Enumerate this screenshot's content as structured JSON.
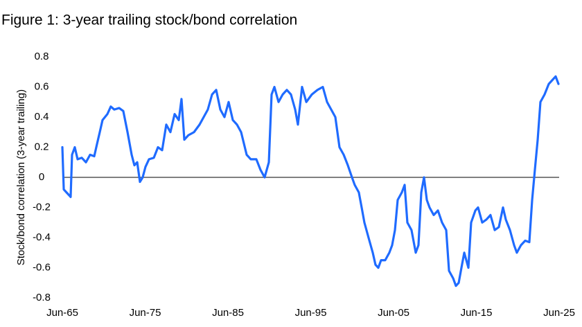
{
  "chart_data": {
    "type": "line",
    "title": "Figure 1: 3-year trailing stock/bond correlation",
    "y_label": "Stock/bond correlation (3-year trailing)",
    "color": "#1f6bff",
    "x": [
      1965.5,
      1965.67,
      1966.0,
      1966.34,
      1966.5,
      1966.67,
      1967.0,
      1967.34,
      1967.84,
      1968.35,
      1968.85,
      1969.35,
      1969.68,
      1970.02,
      1970.35,
      1970.94,
      1971.35,
      1971.77,
      1972.36,
      1972.86,
      1973.37,
      1973.87,
      1974.2,
      1974.54,
      1974.87,
      1975.2,
      1975.54,
      1975.96,
      1976.55,
      1977.05,
      1977.55,
      1978.05,
      1978.55,
      1979.06,
      1979.56,
      1979.89,
      1980.23,
      1980.73,
      1981.4,
      1982.07,
      1982.57,
      1983.07,
      1983.58,
      1984.08,
      1984.58,
      1985.08,
      1985.58,
      1986.09,
      1986.59,
      1987.09,
      1987.76,
      1988.26,
      1988.93,
      1989.43,
      1989.93,
      1990.44,
      1990.77,
      1991.11,
      1991.61,
      1992.11,
      1992.61,
      1993.11,
      1993.62,
      1993.95,
      1994.45,
      1994.96,
      1995.63,
      1996.3,
      1996.96,
      1997.47,
      1997.97,
      1998.47,
      1998.97,
      1999.48,
      1999.98,
      2000.48,
      2000.81,
      2001.31,
      2001.65,
      2001.98,
      2002.48,
      2002.99,
      2003.32,
      2003.66,
      2003.99,
      2004.49,
      2004.99,
      2005.33,
      2005.67,
      2006.0,
      2006.5,
      2006.84,
      2007.17,
      2007.67,
      2008.18,
      2008.51,
      2008.85,
      2009.18,
      2009.52,
      2009.85,
      2010.35,
      2010.86,
      2011.36,
      2011.86,
      2012.2,
      2012.7,
      2013.03,
      2013.37,
      2013.7,
      2014.04,
      2014.54,
      2014.87,
      2015.38,
      2015.71,
      2016.21,
      2016.71,
      2017.21,
      2017.72,
      2018.22,
      2018.72,
      2019.06,
      2019.56,
      2020.06,
      2020.39,
      2020.89,
      2021.4,
      2021.9,
      2022.24,
      2022.57,
      2022.91,
      2023.24,
      2023.74,
      2024.25,
      2024.75,
      2025.08,
      2025.42
    ],
    "values": [
      0.2,
      -0.08,
      -0.1,
      -0.12,
      -0.13,
      0.15,
      0.2,
      0.12,
      0.13,
      0.1,
      0.15,
      0.14,
      0.22,
      0.3,
      0.38,
      0.42,
      0.47,
      0.45,
      0.46,
      0.44,
      0.3,
      0.15,
      0.08,
      0.1,
      -0.03,
      0.0,
      0.07,
      0.12,
      0.13,
      0.2,
      0.18,
      0.35,
      0.3,
      0.42,
      0.38,
      0.52,
      0.25,
      0.28,
      0.3,
      0.35,
      0.4,
      0.45,
      0.55,
      0.58,
      0.45,
      0.4,
      0.5,
      0.38,
      0.35,
      0.3,
      0.15,
      0.12,
      0.12,
      0.05,
      0.0,
      0.1,
      0.55,
      0.6,
      0.5,
      0.55,
      0.58,
      0.55,
      0.45,
      0.35,
      0.6,
      0.5,
      0.55,
      0.58,
      0.6,
      0.5,
      0.45,
      0.4,
      0.2,
      0.15,
      0.08,
      0.0,
      -0.05,
      -0.1,
      -0.2,
      -0.3,
      -0.4,
      -0.5,
      -0.58,
      -0.6,
      -0.55,
      -0.55,
      -0.5,
      -0.45,
      -0.35,
      -0.15,
      -0.1,
      -0.05,
      -0.3,
      -0.35,
      -0.5,
      -0.45,
      -0.1,
      0.0,
      -0.15,
      -0.2,
      -0.25,
      -0.22,
      -0.3,
      -0.35,
      -0.62,
      -0.67,
      -0.72,
      -0.7,
      -0.6,
      -0.5,
      -0.6,
      -0.3,
      -0.22,
      -0.2,
      -0.3,
      -0.28,
      -0.25,
      -0.35,
      -0.33,
      -0.2,
      -0.28,
      -0.35,
      -0.45,
      -0.5,
      -0.45,
      -0.42,
      -0.43,
      -0.15,
      0.05,
      0.25,
      0.5,
      0.55,
      0.62,
      0.65,
      0.67,
      0.62
    ],
    "xlim": [
      1965.5,
      2025.5
    ],
    "xticks": [
      {
        "value": 1965.5,
        "label": "Jun-65"
      },
      {
        "value": 1975.5,
        "label": "Jun-75"
      },
      {
        "value": 1985.5,
        "label": "Jun-85"
      },
      {
        "value": 1995.5,
        "label": "Jun-95"
      },
      {
        "value": 2005.5,
        "label": "Jun-05"
      },
      {
        "value": 2015.5,
        "label": "Jun-15"
      },
      {
        "value": 2025.5,
        "label": "Jun-25"
      }
    ],
    "ylim": [
      -0.8,
      0.8
    ],
    "yticks": [
      0.8,
      0.6,
      0.4,
      0.2,
      0,
      -0.2,
      -0.4,
      -0.6,
      -0.8
    ],
    "grid": false
  }
}
